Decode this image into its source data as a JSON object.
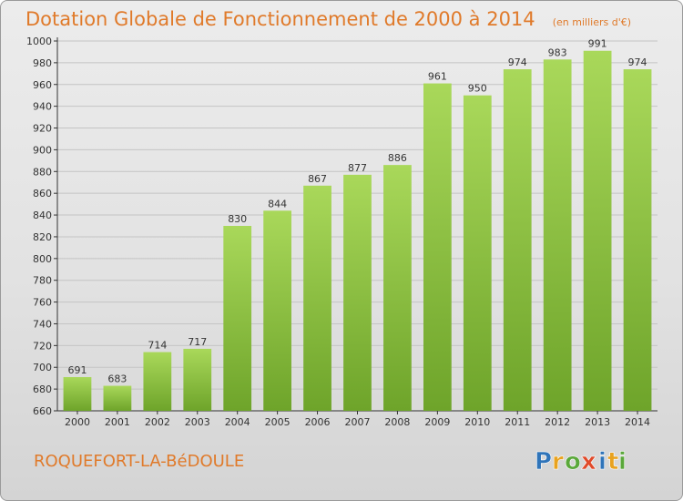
{
  "title": "Dotation Globale de Fonctionnement de 2000 à 2014",
  "unit": "(en milliers d'€)",
  "commune": "ROQUEFORT-LA-BéDOULE",
  "logo": {
    "text": "Proxiti",
    "letters": [
      "P",
      "r",
      "o",
      "x",
      "i",
      "t",
      "i"
    ],
    "colors": [
      "#2f74b9",
      "#e8a21f",
      "#5aa83a",
      "#e04a2a",
      "#2f74b9",
      "#e8a21f",
      "#5aa83a"
    ]
  },
  "colors": {
    "bar_light": "#a9d85a",
    "bar_dark": "#6ea42a",
    "title": "#e07a2a"
  },
  "chart_data": {
    "type": "bar",
    "categories": [
      "2000",
      "2001",
      "2002",
      "2003",
      "2004",
      "2005",
      "2006",
      "2007",
      "2008",
      "2009",
      "2010",
      "2011",
      "2012",
      "2013",
      "2014"
    ],
    "values": [
      691,
      683,
      714,
      717,
      830,
      844,
      867,
      877,
      886,
      961,
      950,
      974,
      983,
      991,
      974
    ],
    "ylim": [
      660,
      1000
    ],
    "yticks": [
      660,
      680,
      700,
      720,
      740,
      760,
      780,
      800,
      820,
      840,
      860,
      880,
      900,
      920,
      940,
      960,
      980,
      1000
    ],
    "grid": true,
    "xlabel": "",
    "ylabel": ""
  }
}
